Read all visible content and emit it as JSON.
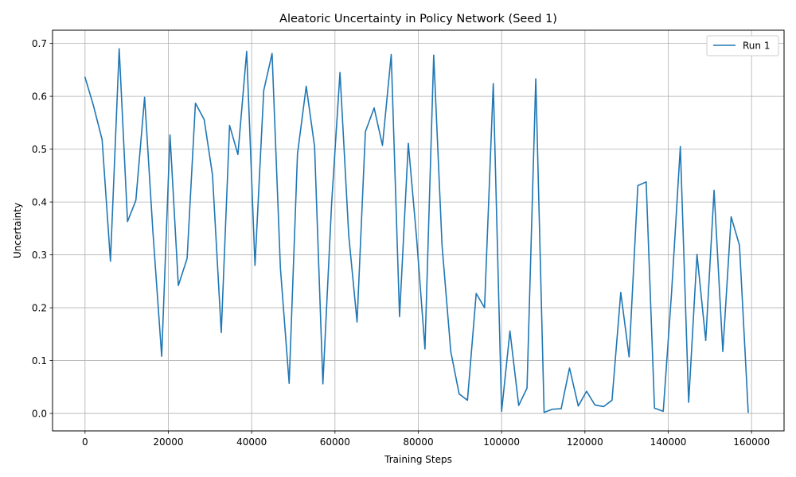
{
  "chart_data": {
    "type": "line",
    "title": "Aleatoric Uncertainty in Policy Network (Seed 1)",
    "xlabel": "Training Steps",
    "ylabel": "Uncertainty",
    "xlim": [
      -7800,
      167800
    ],
    "ylim": [
      -0.033,
      0.725
    ],
    "xticks": [
      0,
      20000,
      40000,
      60000,
      80000,
      100000,
      120000,
      140000,
      160000
    ],
    "yticks": [
      0.0,
      0.1,
      0.2,
      0.3,
      0.4,
      0.5,
      0.6,
      0.7
    ],
    "xtick_labels": [
      "0",
      "20000",
      "40000",
      "60000",
      "80000",
      "100000",
      "120000",
      "140000",
      "160000"
    ],
    "ytick_labels": [
      "0.0",
      "0.1",
      "0.2",
      "0.3",
      "0.4",
      "0.5",
      "0.6",
      "0.7"
    ],
    "grid": true,
    "legend_position": "top-right",
    "series": [
      {
        "name": "Run 1",
        "color": "#1f77b4",
        "x": [
          0,
          2000,
          4100,
          6100,
          8200,
          10200,
          12200,
          14300,
          16300,
          18400,
          20400,
          22400,
          24500,
          26500,
          28600,
          30600,
          32700,
          34700,
          36700,
          38800,
          40800,
          42900,
          44900,
          46900,
          49000,
          51000,
          53100,
          55100,
          57100,
          59200,
          61200,
          63300,
          65300,
          67300,
          69400,
          71400,
          73500,
          75500,
          77600,
          79600,
          81600,
          83700,
          85700,
          87800,
          89800,
          91800,
          93900,
          95900,
          98000,
          100000,
          102000,
          104100,
          106100,
          108200,
          110200,
          112200,
          114300,
          116300,
          118400,
          120400,
          122400,
          124500,
          126500,
          128600,
          130600,
          132700,
          134700,
          136700,
          138800,
          140800,
          142900,
          144900,
          146900,
          149000,
          151000,
          153100,
          155100,
          157100,
          159200
        ],
        "y": [
          0.636,
          0.583,
          0.518,
          0.288,
          0.69,
          0.363,
          0.403,
          0.598,
          0.343,
          0.108,
          0.527,
          0.242,
          0.293,
          0.587,
          0.556,
          0.451,
          0.153,
          0.545,
          0.49,
          0.685,
          0.28,
          0.611,
          0.681,
          0.275,
          0.057,
          0.491,
          0.619,
          0.505,
          0.056,
          0.398,
          0.645,
          0.337,
          0.173,
          0.533,
          0.578,
          0.507,
          0.679,
          0.183,
          0.511,
          0.331,
          0.122,
          0.678,
          0.318,
          0.117,
          0.037,
          0.025,
          0.227,
          0.2,
          0.624,
          0.004,
          0.156,
          0.015,
          0.048,
          0.633,
          0.002,
          0.008,
          0.009,
          0.086,
          0.014,
          0.042,
          0.016,
          0.013,
          0.025,
          0.229,
          0.107,
          0.431,
          0.438,
          0.01,
          0.004,
          0.229,
          0.505,
          0.021,
          0.301,
          0.138,
          0.422,
          0.117,
          0.372,
          0.318,
          0.002
        ]
      }
    ]
  }
}
